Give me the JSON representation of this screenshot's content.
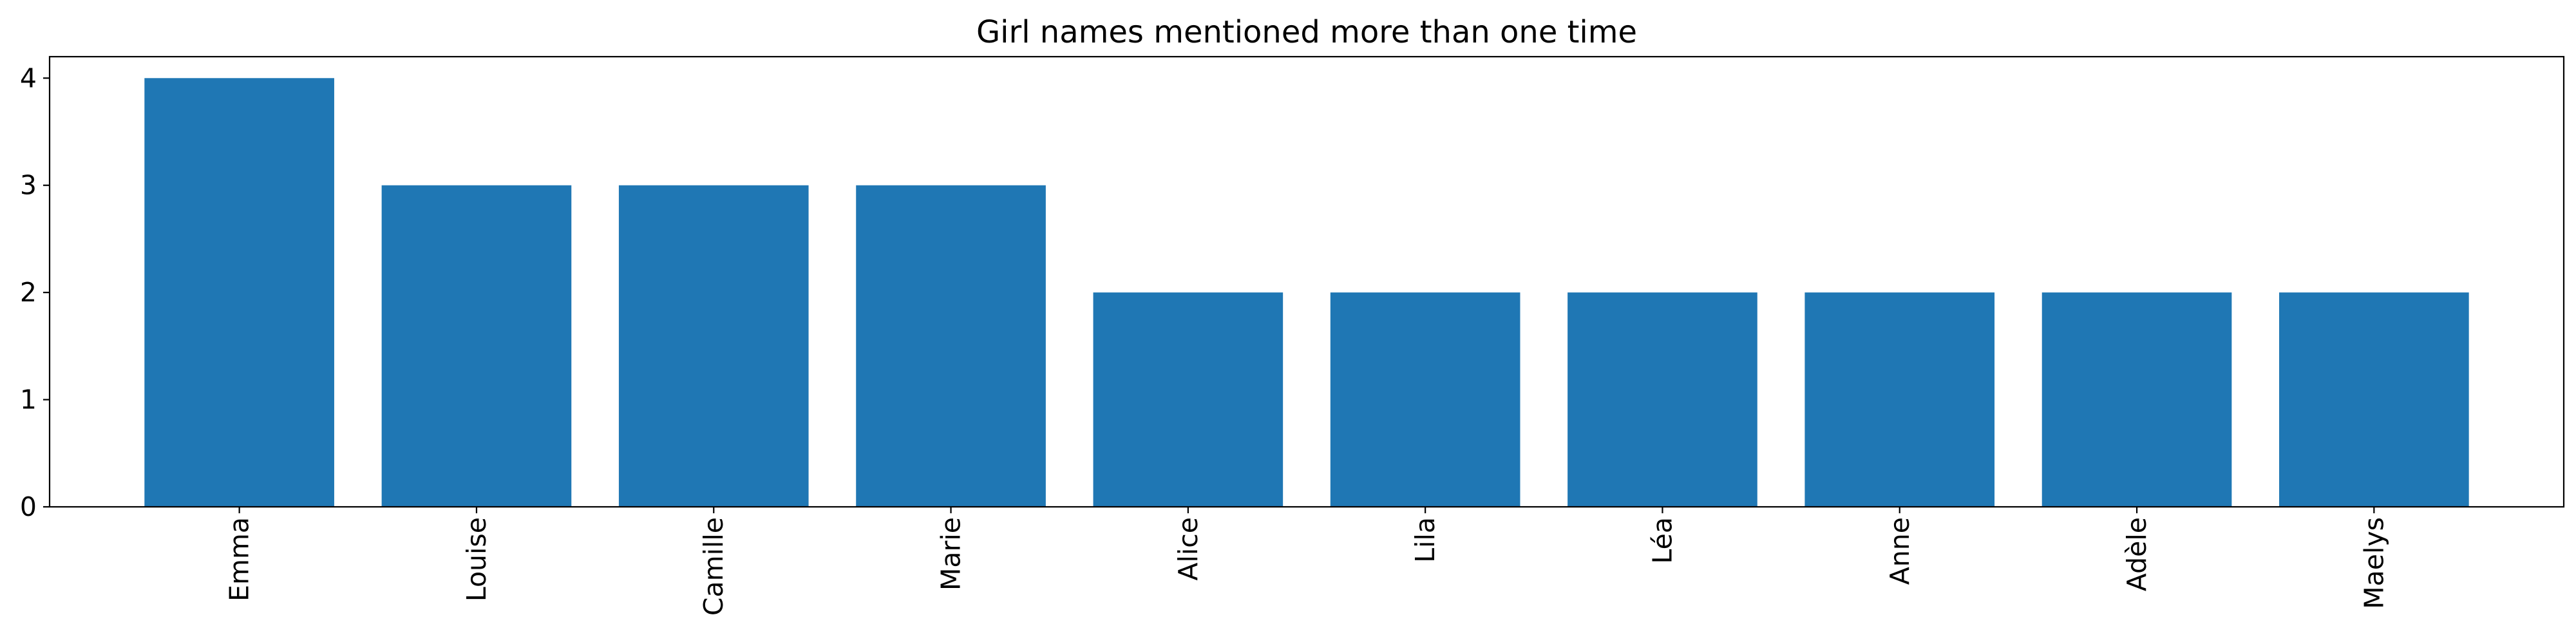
{
  "chart_data": {
    "type": "bar",
    "title": "Girl names mentioned more than one time",
    "xlabel": "",
    "ylabel": "",
    "categories": [
      "Emma",
      "Louise",
      "Camille",
      "Marie",
      "Alice",
      "Lila",
      "Léa",
      "Anne",
      "Adèle",
      "Maelys"
    ],
    "values": [
      4,
      3,
      3,
      3,
      2,
      2,
      2,
      2,
      2,
      2
    ],
    "ylim": [
      0,
      4.2
    ],
    "yticks": [
      0,
      1,
      2,
      3,
      4
    ],
    "grid": false,
    "bar_color": "#1f77b4",
    "x_tick_rotation": "vertical"
  }
}
